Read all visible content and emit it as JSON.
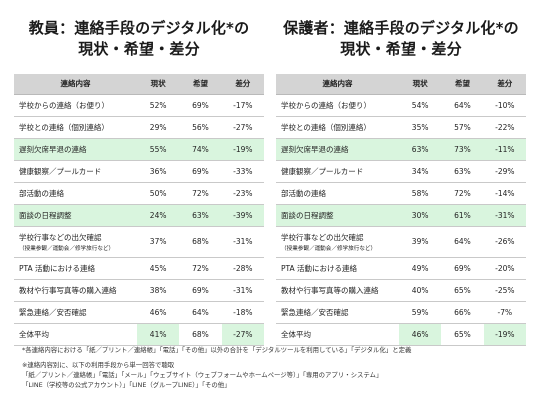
{
  "chart_data": [
    {
      "type": "table",
      "title_line1": "教員：連絡手段のデジタル化*の",
      "title_line2": "現状・希望・差分",
      "columns": [
        "連絡内容",
        "現状",
        "希望",
        "差分"
      ],
      "rows": [
        {
          "item": "学校からの連絡（お便り）",
          "current": "52%",
          "hope": "69%",
          "diff": "-17%"
        },
        {
          "item": "学校との連絡（個別連絡）",
          "current": "29%",
          "hope": "56%",
          "diff": "-27%"
        },
        {
          "item": "遅刻欠席早退の連絡",
          "current": "55%",
          "hope": "74%",
          "diff": "-19%"
        },
        {
          "item": "健康観察／プールカード",
          "current": "36%",
          "hope": "69%",
          "diff": "-33%"
        },
        {
          "item": "部活動の連絡",
          "current": "50%",
          "hope": "72%",
          "diff": "-23%"
        },
        {
          "item": "面談の日程調整",
          "current": "24%",
          "hope": "63%",
          "diff": "-39%"
        },
        {
          "item": "学校行事などの出欠確認",
          "sub": "（授業参観／運動会／修学旅行など）",
          "current": "37%",
          "hope": "68%",
          "diff": "-31%"
        },
        {
          "item": "PTA 活動における連絡",
          "current": "45%",
          "hope": "72%",
          "diff": "-28%"
        },
        {
          "item": "教材や行事写真等の購入連絡",
          "current": "38%",
          "hope": "69%",
          "diff": "-31%"
        },
        {
          "item": "緊急連絡／安否確認",
          "current": "46%",
          "hope": "64%",
          "diff": "-18%"
        },
        {
          "item": "全体平均",
          "current": "41%",
          "hope": "68%",
          "diff": "-27%"
        }
      ]
    },
    {
      "type": "table",
      "title_line1": "保護者：連絡手段のデジタル化*の",
      "title_line2": "現状・希望・差分",
      "columns": [
        "連絡内容",
        "現状",
        "希望",
        "差分"
      ],
      "rows": [
        {
          "item": "学校からの連絡（お便り）",
          "current": "54%",
          "hope": "64%",
          "diff": "-10%"
        },
        {
          "item": "学校との連絡（個別連絡）",
          "current": "35%",
          "hope": "57%",
          "diff": "-22%"
        },
        {
          "item": "遅刻欠席早退の連絡",
          "current": "63%",
          "hope": "73%",
          "diff": "-11%"
        },
        {
          "item": "健康観察／プールカード",
          "current": "34%",
          "hope": "63%",
          "diff": "-29%"
        },
        {
          "item": "部活動の連絡",
          "current": "58%",
          "hope": "72%",
          "diff": "-14%"
        },
        {
          "item": "面談の日程調整",
          "current": "30%",
          "hope": "61%",
          "diff": "-31%"
        },
        {
          "item": "学校行事などの出欠確認",
          "sub": "（授業参観／運動会／修学旅行など）",
          "current": "39%",
          "hope": "64%",
          "diff": "-26%"
        },
        {
          "item": "PTA 活動における連絡",
          "current": "49%",
          "hope": "69%",
          "diff": "-20%"
        },
        {
          "item": "教材や行事写真等の購入連絡",
          "current": "40%",
          "hope": "65%",
          "diff": "-25%"
        },
        {
          "item": "緊急連絡／安否確認",
          "current": "59%",
          "hope": "66%",
          "diff": "-7%"
        },
        {
          "item": "全体平均",
          "current": "46%",
          "hope": "65%",
          "diff": "-19%"
        }
      ]
    }
  ],
  "style": {
    "highlight_color": "#d9f5de",
    "header_color": "#d4d4d4",
    "highlighted_rows": [
      "遅刻欠席早退の連絡",
      "面談の日程調整"
    ],
    "highlighted_summary_cells": [
      "current",
      "diff"
    ]
  },
  "notes": {
    "line1": "*各連絡内容における「紙／プリント／連絡帳」「電話」「その他」以外の合計を「デジタルツールを利用している」「デジタル化」と定義",
    "line2": "※連絡内容別に、以下の利用手段から単一回答で聴取",
    "line3": "「紙／プリント／連絡帳」「電話」「メール」「ウェブサイト（ウェブフォームやホームページ等）」「専用のアプリ・システム」",
    "line4": "「LINE（学校等の公式アカウント）」「LINE（グループLINE）」「その他」"
  }
}
